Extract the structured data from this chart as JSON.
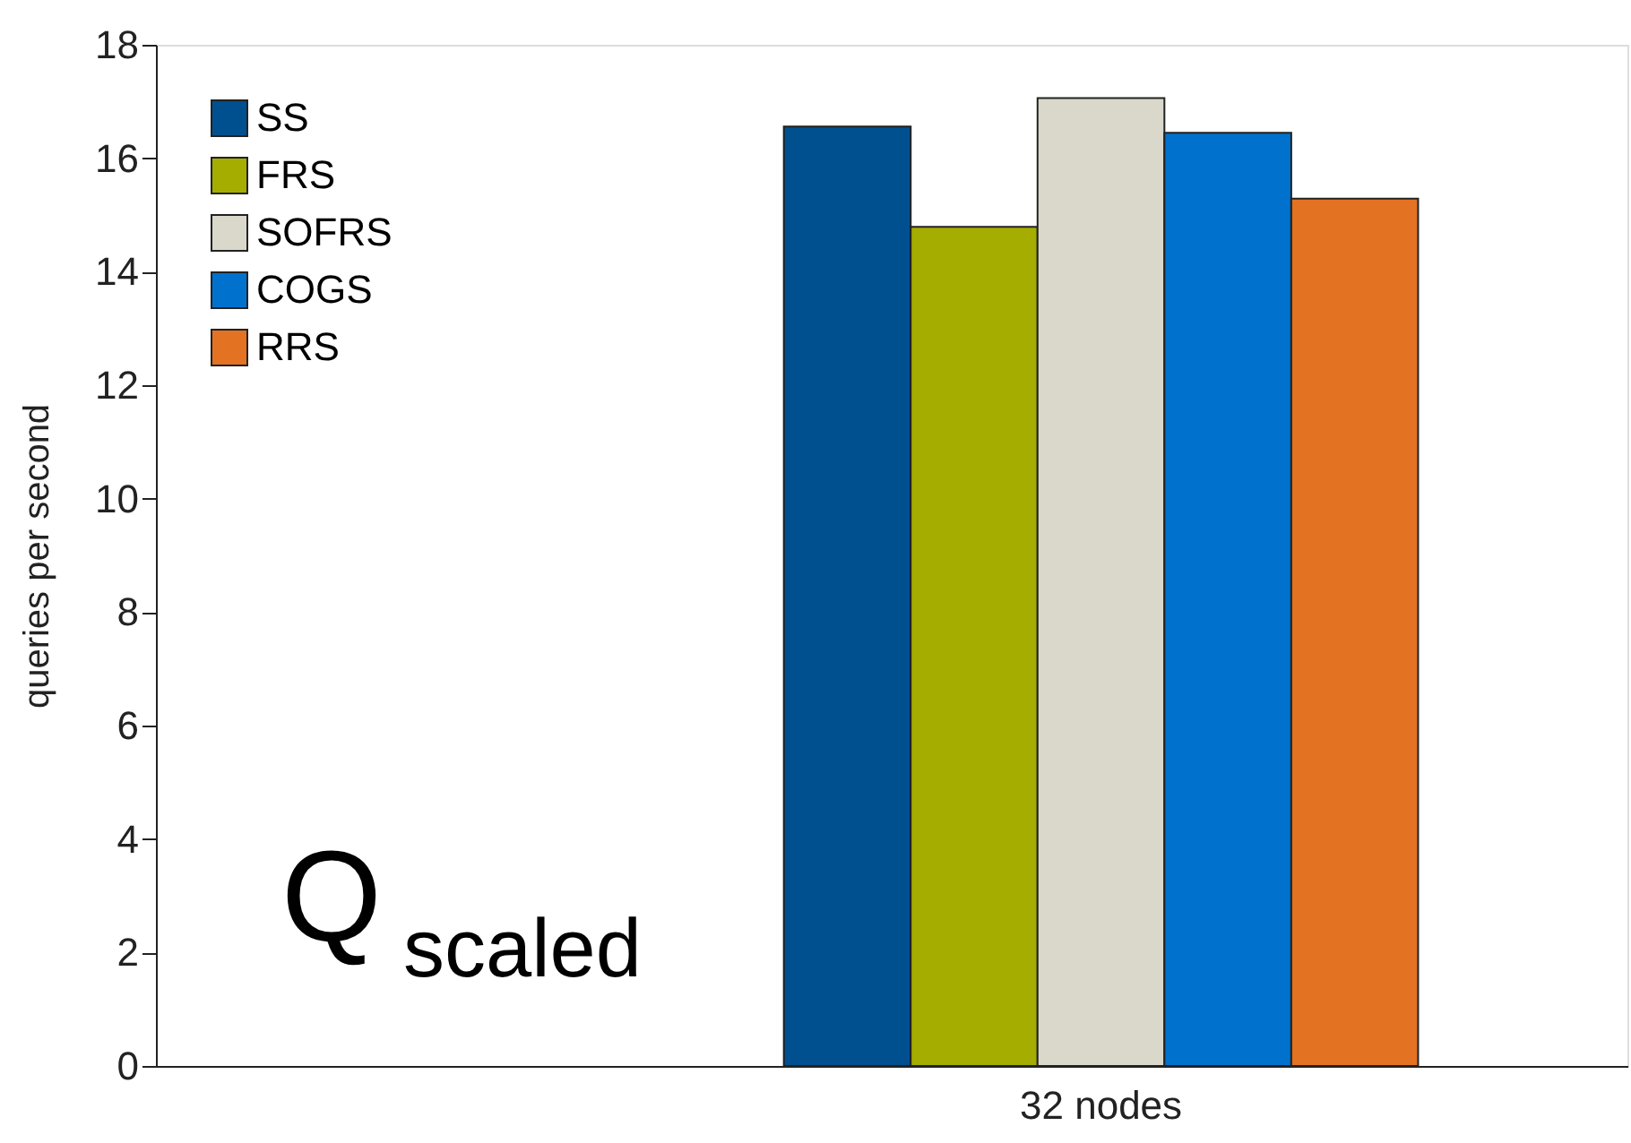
{
  "chart_data": {
    "type": "bar",
    "ylabel": "queries per second",
    "categories": [
      "32 nodes"
    ],
    "series": [
      {
        "name": "SS",
        "color": "#00508f",
        "values": [
          16.56
        ]
      },
      {
        "name": "FRS",
        "color": "#a4ad00",
        "values": [
          14.79
        ]
      },
      {
        "name": "SOFRS",
        "color": "#d9d8cb",
        "values": [
          17.06
        ]
      },
      {
        "name": "COGS",
        "color": "#0072ce",
        "values": [
          16.45
        ]
      },
      {
        "name": "RRS",
        "color": "#e37222",
        "values": [
          15.29
        ]
      }
    ],
    "ylim": [
      0,
      18
    ],
    "yticks": [
      0,
      2,
      4,
      6,
      8,
      10,
      12,
      14,
      16,
      18
    ],
    "grid": false,
    "legend": "top left",
    "annotations": [
      "Q$_{scaled}$"
    ]
  }
}
